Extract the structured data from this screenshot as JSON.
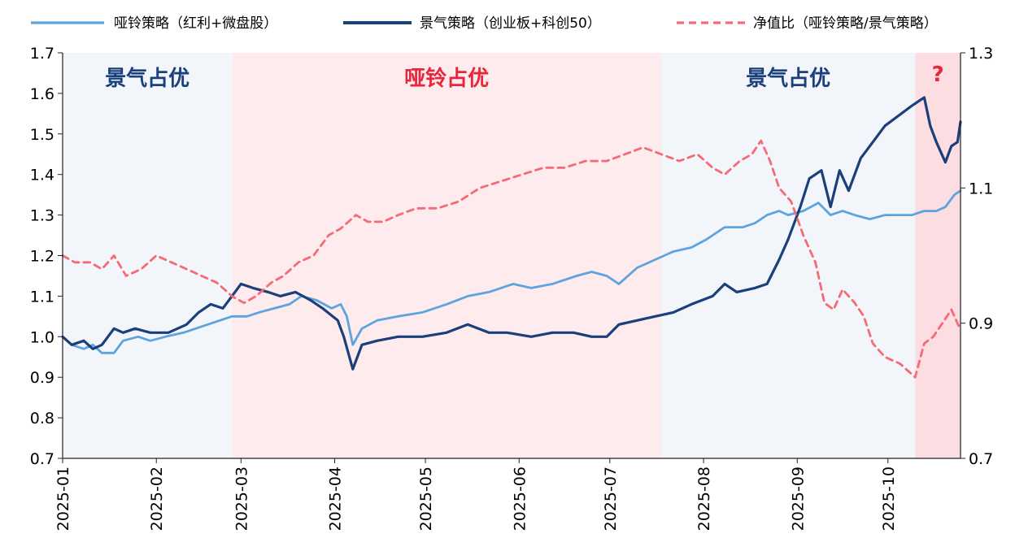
{
  "chart_data": {
    "type": "line",
    "title": "",
    "xlabel": "",
    "ylabel": "",
    "legend_position": "top",
    "grid": false,
    "x_ticks": [
      "2025-01",
      "2025-02",
      "2025-03",
      "2025-04",
      "2025-05",
      "2025-06",
      "2025-07",
      "2025-08",
      "2025-09",
      "2025-10"
    ],
    "y_left": {
      "range": [
        0.7,
        1.7
      ],
      "ticks": [
        "0.7",
        "0.8",
        "0.9",
        "1.0",
        "1.1",
        "1.2",
        "1.3",
        "1.4",
        "1.5",
        "1.6",
        "1.7"
      ]
    },
    "y_right": {
      "range": [
        0.7,
        1.3
      ],
      "ticks": [
        "0.7",
        "0.9",
        "1.1",
        "1.3"
      ]
    },
    "regions": [
      {
        "start": "2025-01-01",
        "end": "2025-02-26",
        "label": "景气占优",
        "color": "#f2f6fb",
        "label_color": "#1a3f7a"
      },
      {
        "start": "2025-02-26",
        "end": "2025-07-18",
        "label": "哑铃占优",
        "color": "#fdebee",
        "label_color": "#e8253a"
      },
      {
        "start": "2025-07-18",
        "end": "2025-10-10",
        "label": "景气占优",
        "color": "#f2f6fb",
        "label_color": "#1a3f7a"
      },
      {
        "start": "2025-10-10",
        "end": "2025-10-25",
        "label": "?",
        "color": "#fbdde2",
        "label_color": "#e8253a"
      }
    ],
    "series": [
      {
        "name": "哑铃策略（红利+微盘股）",
        "axis": "left",
        "color": "#5da3dd",
        "dash": "solid",
        "points": [
          [
            "2025-01-01",
            1.0
          ],
          [
            "2025-01-04",
            0.98
          ],
          [
            "2025-01-08",
            0.97
          ],
          [
            "2025-01-11",
            0.98
          ],
          [
            "2025-01-14",
            0.96
          ],
          [
            "2025-01-18",
            0.96
          ],
          [
            "2025-01-21",
            0.99
          ],
          [
            "2025-01-26",
            1.0
          ],
          [
            "2025-01-30",
            0.99
          ],
          [
            "2025-02-04",
            1.0
          ],
          [
            "2025-02-10",
            1.01
          ],
          [
            "2025-02-14",
            1.02
          ],
          [
            "2025-02-18",
            1.03
          ],
          [
            "2025-02-22",
            1.04
          ],
          [
            "2025-02-26",
            1.05
          ],
          [
            "2025-03-03",
            1.05
          ],
          [
            "2025-03-07",
            1.06
          ],
          [
            "2025-03-12",
            1.07
          ],
          [
            "2025-03-17",
            1.08
          ],
          [
            "2025-03-21",
            1.1
          ],
          [
            "2025-03-26",
            1.09
          ],
          [
            "2025-03-31",
            1.07
          ],
          [
            "2025-04-03",
            1.08
          ],
          [
            "2025-04-05",
            1.05
          ],
          [
            "2025-04-07",
            0.98
          ],
          [
            "2025-04-10",
            1.02
          ],
          [
            "2025-04-15",
            1.04
          ],
          [
            "2025-04-22",
            1.05
          ],
          [
            "2025-04-30",
            1.06
          ],
          [
            "2025-05-08",
            1.08
          ],
          [
            "2025-05-15",
            1.1
          ],
          [
            "2025-05-22",
            1.11
          ],
          [
            "2025-05-30",
            1.13
          ],
          [
            "2025-06-05",
            1.12
          ],
          [
            "2025-06-12",
            1.13
          ],
          [
            "2025-06-20",
            1.15
          ],
          [
            "2025-06-25",
            1.16
          ],
          [
            "2025-06-30",
            1.15
          ],
          [
            "2025-07-04",
            1.13
          ],
          [
            "2025-07-10",
            1.17
          ],
          [
            "2025-07-16",
            1.19
          ],
          [
            "2025-07-22",
            1.21
          ],
          [
            "2025-07-28",
            1.22
          ],
          [
            "2025-08-02",
            1.24
          ],
          [
            "2025-08-08",
            1.27
          ],
          [
            "2025-08-14",
            1.27
          ],
          [
            "2025-08-18",
            1.28
          ],
          [
            "2025-08-22",
            1.3
          ],
          [
            "2025-08-26",
            1.31
          ],
          [
            "2025-08-29",
            1.3
          ],
          [
            "2025-09-03",
            1.31
          ],
          [
            "2025-09-08",
            1.33
          ],
          [
            "2025-09-12",
            1.3
          ],
          [
            "2025-09-16",
            1.31
          ],
          [
            "2025-09-20",
            1.3
          ],
          [
            "2025-09-25",
            1.29
          ],
          [
            "2025-09-30",
            1.3
          ],
          [
            "2025-10-09",
            1.3
          ],
          [
            "2025-10-13",
            1.31
          ],
          [
            "2025-10-17",
            1.31
          ],
          [
            "2025-10-20",
            1.32
          ],
          [
            "2025-10-23",
            1.35
          ],
          [
            "2025-10-25",
            1.36
          ]
        ]
      },
      {
        "name": "景气策略（创业板+科创50）",
        "axis": "left",
        "color": "#1a3f7a",
        "dash": "solid",
        "points": [
          [
            "2025-01-01",
            1.0
          ],
          [
            "2025-01-04",
            0.98
          ],
          [
            "2025-01-08",
            0.99
          ],
          [
            "2025-01-11",
            0.97
          ],
          [
            "2025-01-14",
            0.98
          ],
          [
            "2025-01-18",
            1.02
          ],
          [
            "2025-01-21",
            1.01
          ],
          [
            "2025-01-25",
            1.02
          ],
          [
            "2025-01-30",
            1.01
          ],
          [
            "2025-02-05",
            1.01
          ],
          [
            "2025-02-11",
            1.03
          ],
          [
            "2025-02-15",
            1.06
          ],
          [
            "2025-02-19",
            1.08
          ],
          [
            "2025-02-23",
            1.07
          ],
          [
            "2025-02-26",
            1.1
          ],
          [
            "2025-03-01",
            1.13
          ],
          [
            "2025-03-05",
            1.12
          ],
          [
            "2025-03-10",
            1.11
          ],
          [
            "2025-03-14",
            1.1
          ],
          [
            "2025-03-19",
            1.11
          ],
          [
            "2025-03-24",
            1.09
          ],
          [
            "2025-03-28",
            1.07
          ],
          [
            "2025-04-02",
            1.04
          ],
          [
            "2025-04-04",
            1.0
          ],
          [
            "2025-04-07",
            0.92
          ],
          [
            "2025-04-10",
            0.98
          ],
          [
            "2025-04-15",
            0.99
          ],
          [
            "2025-04-22",
            1.0
          ],
          [
            "2025-04-30",
            1.0
          ],
          [
            "2025-05-08",
            1.01
          ],
          [
            "2025-05-15",
            1.03
          ],
          [
            "2025-05-22",
            1.01
          ],
          [
            "2025-05-28",
            1.01
          ],
          [
            "2025-06-05",
            1.0
          ],
          [
            "2025-06-12",
            1.01
          ],
          [
            "2025-06-19",
            1.01
          ],
          [
            "2025-06-25",
            1.0
          ],
          [
            "2025-06-30",
            1.0
          ],
          [
            "2025-07-04",
            1.03
          ],
          [
            "2025-07-10",
            1.04
          ],
          [
            "2025-07-16",
            1.05
          ],
          [
            "2025-07-22",
            1.06
          ],
          [
            "2025-07-28",
            1.08
          ],
          [
            "2025-08-04",
            1.1
          ],
          [
            "2025-08-08",
            1.13
          ],
          [
            "2025-08-12",
            1.11
          ],
          [
            "2025-08-18",
            1.12
          ],
          [
            "2025-08-22",
            1.13
          ],
          [
            "2025-08-26",
            1.19
          ],
          [
            "2025-08-29",
            1.24
          ],
          [
            "2025-09-02",
            1.32
          ],
          [
            "2025-09-05",
            1.39
          ],
          [
            "2025-09-09",
            1.41
          ],
          [
            "2025-09-12",
            1.32
          ],
          [
            "2025-09-15",
            1.41
          ],
          [
            "2025-09-18",
            1.36
          ],
          [
            "2025-09-22",
            1.44
          ],
          [
            "2025-09-26",
            1.48
          ],
          [
            "2025-09-30",
            1.52
          ],
          [
            "2025-10-09",
            1.57
          ],
          [
            "2025-10-13",
            1.59
          ],
          [
            "2025-10-15",
            1.52
          ],
          [
            "2025-10-17",
            1.48
          ],
          [
            "2025-10-20",
            1.43
          ],
          [
            "2025-10-22",
            1.47
          ],
          [
            "2025-10-24",
            1.48
          ],
          [
            "2025-10-25",
            1.53
          ]
        ]
      },
      {
        "name": "净值比（哑铃策略/景气策略）",
        "axis": "right",
        "color": "#f46a76",
        "dash": "dashed",
        "points": [
          [
            "2025-01-01",
            1.0
          ],
          [
            "2025-01-05",
            0.99
          ],
          [
            "2025-01-10",
            0.99
          ],
          [
            "2025-01-14",
            0.98
          ],
          [
            "2025-01-18",
            1.0
          ],
          [
            "2025-01-22",
            0.97
          ],
          [
            "2025-01-27",
            0.98
          ],
          [
            "2025-02-01",
            1.0
          ],
          [
            "2025-02-06",
            0.99
          ],
          [
            "2025-02-11",
            0.98
          ],
          [
            "2025-02-16",
            0.97
          ],
          [
            "2025-02-21",
            0.96
          ],
          [
            "2025-02-26",
            0.94
          ],
          [
            "2025-03-02",
            0.93
          ],
          [
            "2025-03-06",
            0.94
          ],
          [
            "2025-03-11",
            0.96
          ],
          [
            "2025-03-15",
            0.97
          ],
          [
            "2025-03-20",
            0.99
          ],
          [
            "2025-03-25",
            1.0
          ],
          [
            "2025-03-30",
            1.03
          ],
          [
            "2025-04-03",
            1.04
          ],
          [
            "2025-04-08",
            1.06
          ],
          [
            "2025-04-12",
            1.05
          ],
          [
            "2025-04-17",
            1.05
          ],
          [
            "2025-04-22",
            1.06
          ],
          [
            "2025-04-28",
            1.07
          ],
          [
            "2025-05-05",
            1.07
          ],
          [
            "2025-05-12",
            1.08
          ],
          [
            "2025-05-19",
            1.1
          ],
          [
            "2025-05-26",
            1.11
          ],
          [
            "2025-06-02",
            1.12
          ],
          [
            "2025-06-09",
            1.13
          ],
          [
            "2025-06-16",
            1.13
          ],
          [
            "2025-06-23",
            1.14
          ],
          [
            "2025-06-30",
            1.14
          ],
          [
            "2025-07-06",
            1.15
          ],
          [
            "2025-07-12",
            1.16
          ],
          [
            "2025-07-18",
            1.15
          ],
          [
            "2025-07-24",
            1.14
          ],
          [
            "2025-07-30",
            1.15
          ],
          [
            "2025-08-04",
            1.13
          ],
          [
            "2025-08-08",
            1.12
          ],
          [
            "2025-08-13",
            1.14
          ],
          [
            "2025-08-17",
            1.15
          ],
          [
            "2025-08-20",
            1.17
          ],
          [
            "2025-08-23",
            1.14
          ],
          [
            "2025-08-26",
            1.1
          ],
          [
            "2025-08-30",
            1.08
          ],
          [
            "2025-09-03",
            1.03
          ],
          [
            "2025-09-07",
            0.99
          ],
          [
            "2025-09-10",
            0.93
          ],
          [
            "2025-09-13",
            0.92
          ],
          [
            "2025-09-16",
            0.95
          ],
          [
            "2025-09-20",
            0.93
          ],
          [
            "2025-09-23",
            0.91
          ],
          [
            "2025-09-26",
            0.87
          ],
          [
            "2025-09-30",
            0.85
          ],
          [
            "2025-10-05",
            0.84
          ],
          [
            "2025-10-10",
            0.82
          ],
          [
            "2025-10-13",
            0.87
          ],
          [
            "2025-10-16",
            0.88
          ],
          [
            "2025-10-19",
            0.9
          ],
          [
            "2025-10-22",
            0.92
          ],
          [
            "2025-10-25",
            0.89
          ]
        ]
      }
    ]
  }
}
